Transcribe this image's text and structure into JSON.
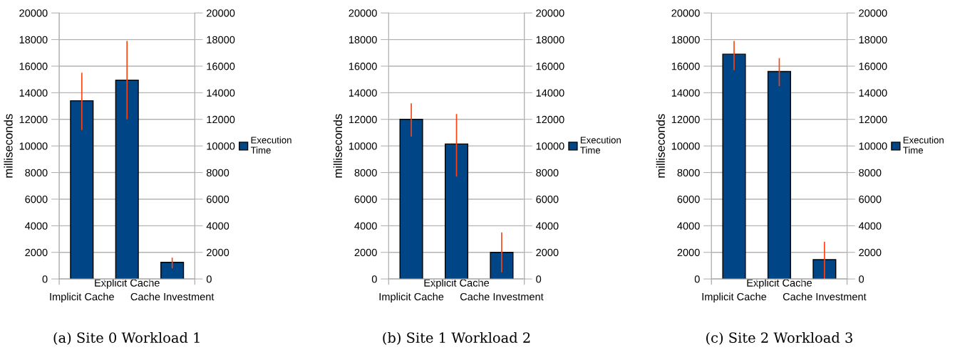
{
  "chart_data": [
    {
      "type": "bar",
      "title": "(a) Site 0 Workload 1",
      "ylabel": "milliseconds",
      "categories": [
        "Implicit Cache",
        "Explicit Cache",
        "Cache Investment"
      ],
      "series": [
        {
          "name": "Execution Time",
          "color": "#004586",
          "values": [
            13400,
            14950,
            1250
          ],
          "errors": [
            [
              11200,
              15500
            ],
            [
              12000,
              17900
            ],
            [
              800,
              1600
            ]
          ]
        }
      ],
      "ylim": [
        0,
        20000
      ],
      "yticks": [
        0,
        2000,
        4000,
        6000,
        8000,
        10000,
        12000,
        14000,
        16000,
        18000,
        20000
      ],
      "y2lim": [
        0,
        20000
      ],
      "y2ticks": [
        0,
        2000,
        4000,
        6000,
        8000,
        10000,
        12000,
        14000,
        16000,
        18000,
        20000
      ],
      "grid": "y",
      "legend": "right"
    },
    {
      "type": "bar",
      "title": "(b) Site 1 Workload 2",
      "ylabel": "milliseconds",
      "categories": [
        "Implicit Cache",
        "Explicit Cache",
        "Cache Investment"
      ],
      "series": [
        {
          "name": "Execution Time",
          "color": "#004586",
          "values": [
            12000,
            10150,
            2000
          ],
          "errors": [
            [
              10700,
              13200
            ],
            [
              7700,
              12400
            ],
            [
              500,
              3500
            ]
          ]
        }
      ],
      "ylim": [
        0,
        20000
      ],
      "yticks": [
        0,
        2000,
        4000,
        6000,
        8000,
        10000,
        12000,
        14000,
        16000,
        18000,
        20000
      ],
      "y2lim": [
        0,
        20000
      ],
      "y2ticks": [
        0,
        2000,
        4000,
        6000,
        8000,
        10000,
        12000,
        14000,
        16000,
        18000,
        20000
      ],
      "grid": "y",
      "legend": "right"
    },
    {
      "type": "bar",
      "title": "(c) Site 2 Workload 3",
      "ylabel": "milliseconds",
      "categories": [
        "Implicit Cache",
        "Explicit Cache",
        "Cache Investment"
      ],
      "series": [
        {
          "name": "Execution Time",
          "color": "#004586",
          "values": [
            16900,
            15600,
            1450
          ],
          "errors": [
            [
              15700,
              17900
            ],
            [
              14500,
              16600
            ],
            [
              0,
              2800
            ]
          ]
        }
      ],
      "ylim": [
        0,
        20000
      ],
      "yticks": [
        0,
        2000,
        4000,
        6000,
        8000,
        10000,
        12000,
        14000,
        16000,
        18000,
        20000
      ],
      "y2lim": [
        0,
        20000
      ],
      "y2ticks": [
        0,
        2000,
        4000,
        6000,
        8000,
        10000,
        12000,
        14000,
        16000,
        18000,
        20000
      ],
      "grid": "y",
      "legend": "right"
    }
  ]
}
